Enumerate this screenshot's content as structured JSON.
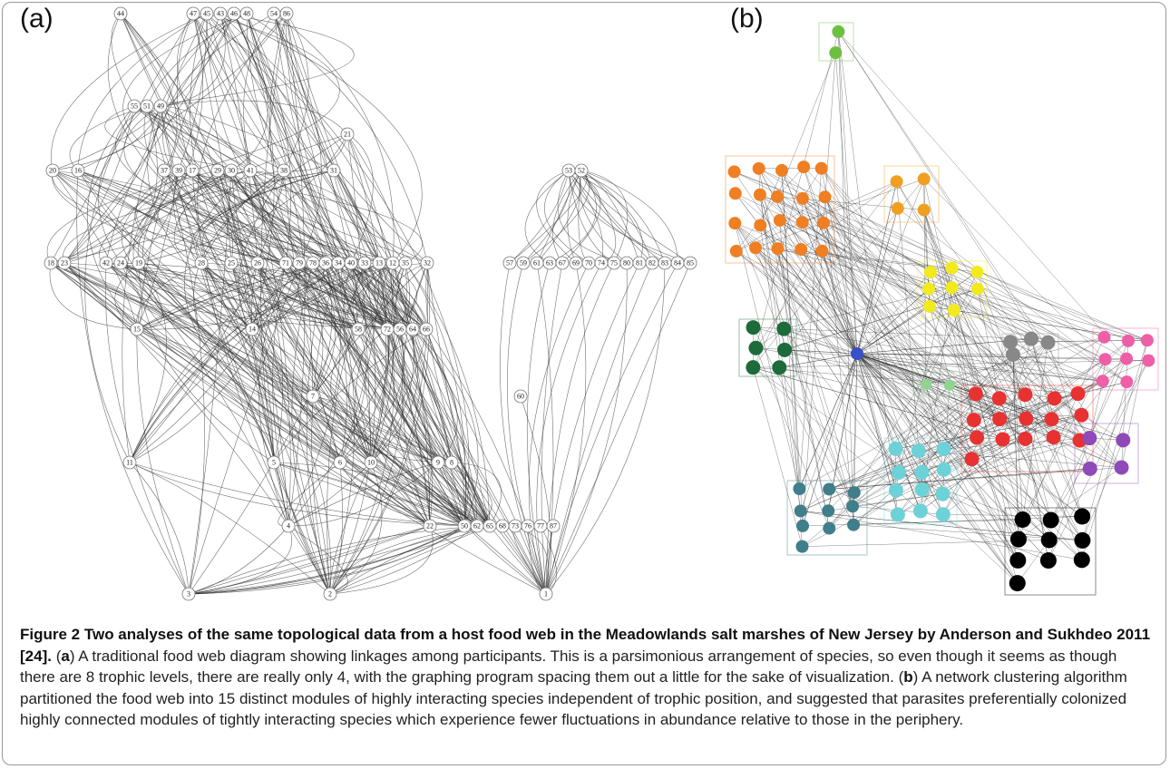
{
  "figure": {
    "panel_a": {
      "label": "(a)",
      "nodes": [
        "44",
        "47",
        "45",
        "43",
        "46",
        "48",
        "54",
        "86",
        "55",
        "51",
        "49",
        "21",
        "20",
        "16",
        "37",
        "39",
        "17",
        "29",
        "30",
        "41",
        "38",
        "31",
        "53",
        "52",
        "18",
        "23",
        "42",
        "24",
        "19",
        "28",
        "25",
        "26",
        "71",
        "79",
        "78",
        "36",
        "34",
        "40",
        "33",
        "13",
        "12",
        "35",
        "32",
        "57",
        "59",
        "61",
        "63",
        "67",
        "69",
        "70",
        "74",
        "75",
        "80",
        "81",
        "82",
        "83",
        "84",
        "85",
        "15",
        "14",
        "58",
        "72",
        "56",
        "64",
        "66",
        "7",
        "60",
        "11",
        "5",
        "6",
        "10",
        "9",
        "8",
        "4",
        "22",
        "50",
        "62",
        "65",
        "68",
        "73",
        "76",
        "77",
        "87",
        "3",
        "2",
        "1"
      ]
    },
    "panel_b": {
      "label": "(b)"
    },
    "caption": [
      {
        "text": "Figure 2 Two analyses of the same topological data from a host food web in the Meadowlands salt marshes of New Jersey by Anderson and Sukhdeo 2011 [24].",
        "bold": true
      },
      {
        "text": " (",
        "bold": false
      },
      {
        "text": "a",
        "bold": true
      },
      {
        "text": ") A traditional food web diagram showing linkages among participants. This is a parsimonious arrangement of species, so even though it seems as though there are 8 trophic levels, there are really only 4, with the graphing program spacing them out a little for the sake of visualization. (",
        "bold": false
      },
      {
        "text": "b",
        "bold": true
      },
      {
        "text": ") A network clustering algorithm partitioned the food web into 15 distinct modules of highly interacting species independent of trophic position, and suggested that parasites preferentially colonized highly connected modules of tightly interacting species which experience fewer fluctuations in abundance relative to those in the periphery.",
        "bold": false
      }
    ]
  }
}
